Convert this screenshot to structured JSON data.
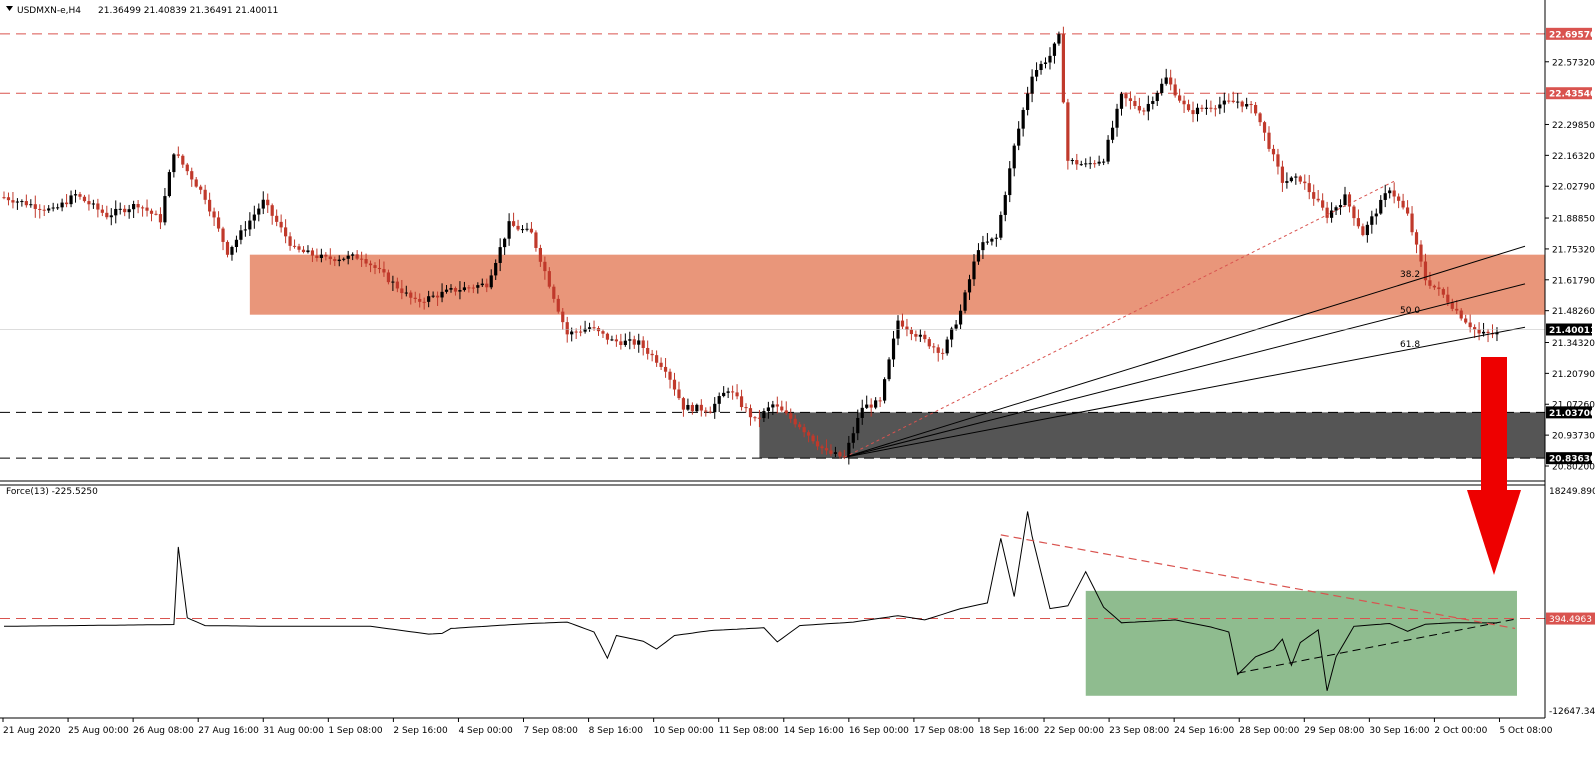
{
  "header": {
    "symbol": "USDMXN-e,H4",
    "ohlc": "21.36499 21.40839 21.36491 21.40011"
  },
  "indicator": {
    "label": "Force(13) -225.5250",
    "axis_top": "18249.8901",
    "axis_bottom": "-12647.344",
    "level_label": "394.4963"
  },
  "colors": {
    "bull": "#000000",
    "bear": "#c0392b",
    "resistance_zone": "#e9967a",
    "support_zone": "#555555",
    "indicator_zone": "#8fbc8f",
    "arrow": "#ee0000",
    "dashed_red": "#d9534f"
  },
  "chart_data": {
    "type": "candlestick",
    "y_ticks": [
      "22.69570",
      "22.57320",
      "22.43540",
      "22.29850",
      "22.16320",
      "22.02790",
      "21.88850",
      "21.75320",
      "21.61790",
      "21.48260",
      "21.40011",
      "21.34320",
      "21.20790",
      "21.07260",
      "21.03700",
      "20.93730",
      "20.83630",
      "20.80200"
    ],
    "price_ylim": [
      20.802,
      22.7475
    ],
    "x_labels": [
      "21 Aug 2020",
      "25 Aug 00:00",
      "26 Aug 08:00",
      "27 Aug 16:00",
      "31 Aug 00:00",
      "1 Sep 08:00",
      "2 Sep 16:00",
      "4 Sep 00:00",
      "7 Sep 08:00",
      "8 Sep 16:00",
      "10 Sep 00:00",
      "11 Sep 08:00",
      "14 Sep 16:00",
      "16 Sep 00:00",
      "17 Sep 08:00",
      "18 Sep 16:00",
      "22 Sep 00:00",
      "23 Sep 08:00",
      "24 Sep 16:00",
      "28 Sep 00:00",
      "29 Sep 08:00",
      "30 Sep 16:00",
      "2 Oct 00:00",
      "5 Oct 08:00"
    ],
    "levels": [
      {
        "price": 22.6957,
        "label": "22.69570",
        "style": "red-dashed"
      },
      {
        "price": 22.4354,
        "label": "22.43540",
        "style": "red-dashed"
      },
      {
        "price": 21.037,
        "label": "21.03700",
        "style": "black-dashed"
      },
      {
        "price": 20.8363,
        "label": "20.83630",
        "style": "black-dashed"
      }
    ],
    "current_price": {
      "price": 21.40011,
      "label": "21.40011"
    },
    "resistance_zone": {
      "from": 21.465,
      "to": 21.728
    },
    "support_zone": {
      "from": 20.8363,
      "to": 21.037
    },
    "fib_labels": [
      "38.2",
      "50.0",
      "61.8"
    ],
    "anchors": [
      [
        0,
        21.98
      ],
      [
        11,
        21.92
      ],
      [
        16,
        21.99
      ],
      [
        23,
        21.9
      ],
      [
        30,
        21.95
      ],
      [
        35,
        21.88
      ],
      [
        38,
        22.18
      ],
      [
        45,
        21.98
      ],
      [
        50,
        21.74
      ],
      [
        58,
        21.96
      ],
      [
        65,
        21.75
      ],
      [
        72,
        21.71
      ],
      [
        80,
        21.72
      ],
      [
        92,
        21.52
      ],
      [
        100,
        21.57
      ],
      [
        108,
        21.6
      ],
      [
        113,
        21.86
      ],
      [
        118,
        21.82
      ],
      [
        122,
        21.6
      ],
      [
        126,
        21.38
      ],
      [
        131,
        21.41
      ],
      [
        136,
        21.35
      ],
      [
        142,
        21.34
      ],
      [
        148,
        21.23
      ],
      [
        152,
        21.06
      ],
      [
        158,
        21.05
      ],
      [
        162,
        21.14
      ],
      [
        168,
        21.0
      ],
      [
        172,
        21.07
      ],
      [
        178,
        20.98
      ],
      [
        184,
        20.86
      ],
      [
        188,
        20.84
      ],
      [
        192,
        21.06
      ],
      [
        196,
        21.08
      ],
      [
        200,
        21.44
      ],
      [
        206,
        21.35
      ],
      [
        210,
        21.3
      ],
      [
        214,
        21.48
      ],
      [
        218,
        21.76
      ],
      [
        222,
        21.8
      ],
      [
        226,
        22.2
      ],
      [
        230,
        22.52
      ],
      [
        234,
        22.6
      ],
      [
        236,
        22.68
      ],
      [
        238,
        22.14
      ],
      [
        242,
        22.12
      ],
      [
        246,
        22.15
      ],
      [
        250,
        22.42
      ],
      [
        255,
        22.36
      ],
      [
        260,
        22.5
      ],
      [
        265,
        22.35
      ],
      [
        270,
        22.38
      ],
      [
        276,
        22.4
      ],
      [
        280,
        22.36
      ],
      [
        286,
        22.05
      ],
      [
        290,
        22.06
      ],
      [
        296,
        21.9
      ],
      [
        300,
        21.98
      ],
      [
        304,
        21.82
      ],
      [
        310,
        22.02
      ],
      [
        314,
        21.9
      ],
      [
        318,
        21.62
      ],
      [
        322,
        21.55
      ],
      [
        326,
        21.46
      ],
      [
        330,
        21.38
      ],
      [
        334,
        21.38
      ]
    ],
    "force_anchors": [
      [
        0,
        -700
      ],
      [
        38,
        -450
      ],
      [
        39,
        10500
      ],
      [
        41,
        500
      ],
      [
        45,
        -600
      ],
      [
        60,
        -700
      ],
      [
        82,
        -700
      ],
      [
        95,
        -1800
      ],
      [
        98,
        -1700
      ],
      [
        100,
        -1000
      ],
      [
        110,
        -600
      ],
      [
        118,
        -300
      ],
      [
        126,
        -100
      ],
      [
        132,
        -1500
      ],
      [
        135,
        -5200
      ],
      [
        137,
        -2000
      ],
      [
        143,
        -2800
      ],
      [
        146,
        -3900
      ],
      [
        150,
        -2000
      ],
      [
        158,
        -1300
      ],
      [
        170,
        -900
      ],
      [
        173,
        -2900
      ],
      [
        178,
        -600
      ],
      [
        190,
        -100
      ],
      [
        200,
        800
      ],
      [
        206,
        200
      ],
      [
        214,
        1800
      ],
      [
        220,
        2600
      ],
      [
        223,
        11700
      ],
      [
        226,
        3500
      ],
      [
        229,
        15500
      ],
      [
        230,
        12000
      ],
      [
        234,
        1800
      ],
      [
        238,
        2200
      ],
      [
        242,
        7000
      ],
      [
        246,
        2000
      ],
      [
        250,
        -200
      ],
      [
        262,
        200
      ],
      [
        270,
        -800
      ],
      [
        274,
        -1500
      ],
      [
        276,
        -7500
      ],
      [
        280,
        -5000
      ],
      [
        284,
        -4000
      ],
      [
        286,
        -2500
      ],
      [
        288,
        -6200
      ],
      [
        290,
        -3000
      ],
      [
        294,
        -1200
      ],
      [
        296,
        -9800
      ],
      [
        298,
        -5000
      ],
      [
        302,
        -700
      ],
      [
        310,
        -300
      ],
      [
        314,
        -1400
      ],
      [
        318,
        -400
      ],
      [
        324,
        -200
      ],
      [
        334,
        -225
      ]
    ],
    "force_ylim": [
      -12647.344,
      18249.8901
    ],
    "force_level": 394.4963,
    "force_zone": {
      "x_from": 242,
      "x_to": 334,
      "y_from": -10500,
      "y_to": 4300
    }
  }
}
